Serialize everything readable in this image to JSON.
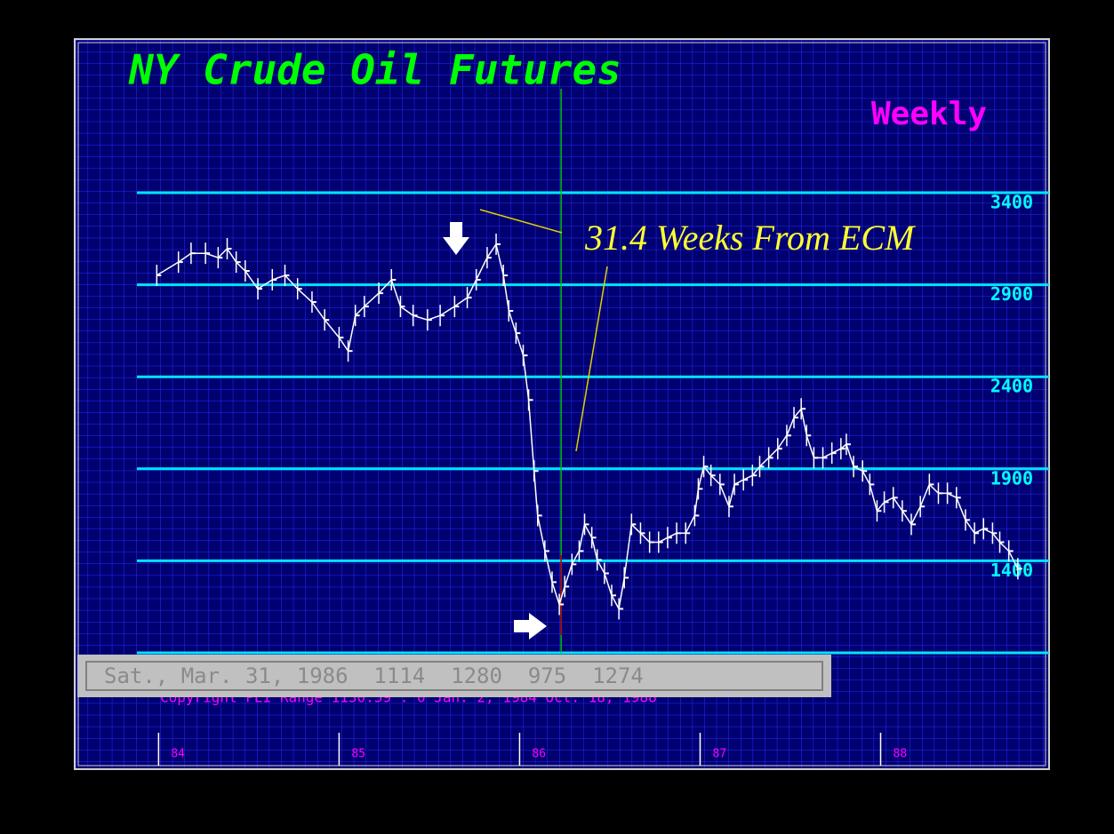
{
  "chart_data": {
    "type": "line",
    "title": "NY Crude Oil Futures",
    "subtitle": "Weekly",
    "annotation": "31.4 Weeks From ECM",
    "status": "Sat., Mar. 31, 1986  1114  1280  975  1274",
    "footer": "Copyright PEI    Range  1130.59 : 0 Jan.  2, 1984 Oct. 18, 1988",
    "color": "#ffffff",
    "ecm_line": 86.23,
    "x": [
      83.99,
      84.11,
      84.18,
      84.26,
      84.33,
      84.38,
      84.43,
      84.48,
      84.55,
      84.63,
      84.7,
      84.77,
      84.85,
      84.92,
      85.0,
      85.05,
      85.09,
      85.14,
      85.22,
      85.29,
      85.34,
      85.41,
      85.49,
      85.56,
      85.64,
      85.71,
      85.76,
      85.82,
      85.87,
      85.91,
      85.94,
      85.98,
      86.02,
      86.05,
      86.08,
      86.1,
      86.14,
      86.18,
      86.22,
      86.25,
      86.29,
      86.33,
      86.36,
      86.4,
      86.43,
      86.47,
      86.51,
      86.55,
      86.58,
      86.62,
      86.67,
      86.72,
      86.77,
      86.82,
      86.87,
      86.92,
      86.97,
      86.99,
      87.02,
      87.06,
      87.11,
      87.16,
      87.19,
      87.24,
      87.29,
      87.33,
      87.38,
      87.43,
      87.48,
      87.52,
      87.56,
      87.59,
      87.63,
      87.68,
      87.73,
      87.78,
      87.81,
      87.85,
      87.9,
      87.94,
      87.98,
      88.02,
      88.07,
      88.12,
      88.17,
      88.22,
      88.27,
      88.32,
      88.37,
      88.42,
      88.47,
      88.52,
      88.57,
      88.62,
      88.66,
      88.71,
      88.76
    ],
    "values": [
      2951,
      3023,
      3071,
      3071,
      3047,
      3096,
      3023,
      2975,
      2878,
      2927,
      2951,
      2878,
      2806,
      2709,
      2613,
      2540,
      2733,
      2782,
      2854,
      2927,
      2782,
      2733,
      2709,
      2733,
      2782,
      2830,
      2927,
      3047,
      3120,
      2951,
      2758,
      2637,
      2516,
      2274,
      1888,
      1646,
      1453,
      1284,
      1163,
      1260,
      1381,
      1453,
      1598,
      1526,
      1405,
      1332,
      1212,
      1139,
      1308,
      1598,
      1550,
      1501,
      1501,
      1526,
      1550,
      1550,
      1646,
      1791,
      1912,
      1864,
      1815,
      1695,
      1815,
      1840,
      1864,
      1912,
      1960,
      2009,
      2081,
      2178,
      2226,
      2081,
      1960,
      1960,
      1985,
      2009,
      2033,
      1912,
      1888,
      1815,
      1671,
      1719,
      1743,
      1671,
      1598,
      1695,
      1815,
      1767,
      1767,
      1743,
      1622,
      1550,
      1574,
      1550,
      1501,
      1453,
      1357
    ],
    "xlim": [
      83.88,
      88.82
    ],
    "xticks": [
      84,
      85,
      86,
      87,
      88
    ],
    "ylim": [
      900,
      3400
    ],
    "yticks": [
      1400,
      1900,
      2400,
      2900,
      3400
    ],
    "grid": true
  }
}
